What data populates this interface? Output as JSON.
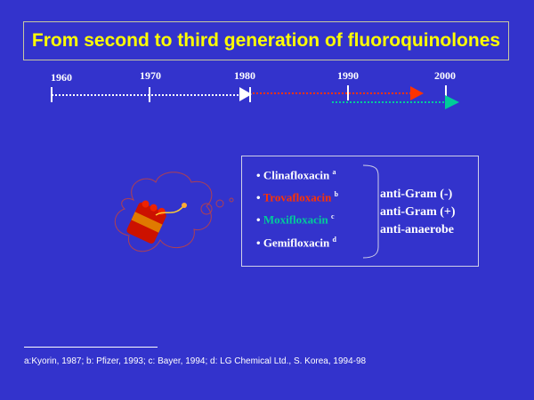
{
  "title": "From second to third generation of fluoroquinolones",
  "timeline": {
    "years": [
      "1960",
      "1970",
      "1980",
      "1990",
      "2000"
    ],
    "colors": {
      "base": "#ffffff",
      "second": "#ff3300",
      "third": "#00cc99"
    }
  },
  "drugs": [
    {
      "name": "Clinafloxacin",
      "ref": "a",
      "color": "#ffffff"
    },
    {
      "name": "Trovafloxacin",
      "ref": "b",
      "color": "#ff3300"
    },
    {
      "name": "Moxifloxacin",
      "ref": "c",
      "color": "#00cc99"
    },
    {
      "name": "Gemifloxacin",
      "ref": "d",
      "color": "#ffffff"
    }
  ],
  "activity": [
    "anti-Gram (-)",
    "anti-Gram (+)",
    "anti-anaerobe"
  ],
  "footnote": "a:Kyorin, 1987; b: Pfizer, 1993; c: Bayer, 1994; d: LG Chemical Ltd., S. Korea, 1994-98"
}
